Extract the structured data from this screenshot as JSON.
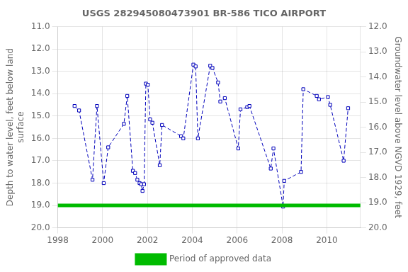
{
  "chart_data": {
    "type": "line",
    "title": "USGS 282945080473901 BR-586 TICO AIRPORT",
    "ylabel": "Depth to water level, feet below land\nsurface",
    "y2label": "Groundwater level above NGVD 1929, feet",
    "xlim": [
      1998.0,
      2011.5
    ],
    "xticks": [
      1998,
      2000,
      2002,
      2004,
      2006,
      2008,
      2010
    ],
    "ylim": [
      20.0,
      11.0
    ],
    "yticks": [
      {
        "value": 11.0,
        "label": "11.0"
      },
      {
        "value": 12.0,
        "label": "12.0"
      },
      {
        "value": 13.0,
        "label": "13.0"
      },
      {
        "value": 14.0,
        "label": "14.0"
      },
      {
        "value": 15.0,
        "label": "15.0"
      },
      {
        "value": 16.0,
        "label": "16.0"
      },
      {
        "value": 17.0,
        "label": "17.0"
      },
      {
        "value": 18.0,
        "label": "18.0"
      },
      {
        "value": 19.0,
        "label": "19.0"
      },
      {
        "value": 20.0,
        "label": "20.0"
      }
    ],
    "y2lim": [
      20.0,
      12.0
    ],
    "y2ticks": [
      {
        "value": 20.0,
        "label": "20.0"
      },
      {
        "value": 19.0,
        "label": "19.0"
      },
      {
        "value": 18.0,
        "label": "18.0"
      },
      {
        "value": 17.0,
        "label": "17.0"
      },
      {
        "value": 16.0,
        "label": "16.0"
      },
      {
        "value": 15.0,
        "label": "15.0"
      },
      {
        "value": 14.0,
        "label": "14.0"
      },
      {
        "value": 13.0,
        "label": "13.0"
      },
      {
        "value": 12.0,
        "label": "12.0"
      }
    ],
    "grid": true,
    "legend": "bottom",
    "series": [
      {
        "color": "#0000bb",
        "marker": "square",
        "line_style": "dashed",
        "x": [
          1998.75,
          1998.95,
          1999.55,
          1999.75,
          2000.05,
          2000.25,
          2000.95,
          2001.1,
          2001.35,
          2001.45,
          2001.55,
          2001.65,
          2001.72,
          2001.78,
          2001.85,
          2001.93,
          2002.02,
          2002.12,
          2002.22,
          2002.55,
          2002.65,
          2003.5,
          2003.6,
          2004.05,
          2004.15,
          2004.25,
          2004.8,
          2004.9,
          2005.15,
          2005.25,
          2005.45,
          2006.05,
          2006.15,
          2006.45,
          2006.55,
          2007.5,
          2007.62,
          2008.05,
          2008.1,
          2008.85,
          2008.95,
          2009.55,
          2009.65,
          2010.05,
          2010.15,
          2010.75,
          2010.95
        ],
        "values": [
          14.55,
          14.75,
          17.85,
          14.55,
          18.0,
          16.4,
          15.35,
          14.1,
          17.45,
          17.55,
          17.85,
          18.0,
          18.05,
          18.35,
          18.05,
          13.55,
          13.6,
          15.15,
          15.3,
          17.2,
          15.4,
          15.9,
          16.0,
          12.7,
          12.78,
          16.0,
          12.75,
          12.85,
          13.5,
          14.35,
          14.2,
          16.45,
          14.7,
          14.6,
          14.55,
          17.35,
          16.45,
          19.05,
          17.9,
          17.5,
          13.8,
          14.1,
          14.25,
          14.15,
          14.5,
          17.0,
          14.65
        ]
      },
      {
        "name": "Period of approved data",
        "color": "#00bb00",
        "line_style": "solid",
        "x": [
          1998.0,
          2011.5
        ],
        "values": [
          19.0,
          19.0
        ]
      }
    ]
  }
}
